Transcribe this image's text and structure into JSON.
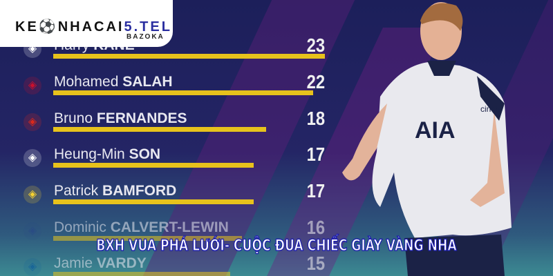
{
  "logo": {
    "main_prefix": "KE",
    "main_mid": "NHACAI",
    "main_accent": "5.TEL",
    "sub": "BAZOKA"
  },
  "scorers": [
    {
      "first": "Harry",
      "last": "KANE",
      "goals": 23,
      "club_icon": "tottenham-crest-icon",
      "color": "#ffffff"
    },
    {
      "first": "Mohamed",
      "last": "SALAH",
      "goals": 22,
      "club_icon": "liverpool-crest-icon",
      "color": "#c8102e"
    },
    {
      "first": "Bruno",
      "last": "FERNANDES",
      "goals": 18,
      "club_icon": "manchester-united-crest-icon",
      "color": "#da291c"
    },
    {
      "first": "Heung-Min",
      "last": "SON",
      "goals": 17,
      "club_icon": "tottenham-crest-icon",
      "color": "#ffffff"
    },
    {
      "first": "Patrick",
      "last": "BAMFORD",
      "goals": 17,
      "club_icon": "leeds-crest-icon",
      "color": "#f5d130"
    },
    {
      "first": "Dominic",
      "last": "CALVERT-LEWIN",
      "goals": 16,
      "club_icon": "everton-crest-icon",
      "color": "#274488"
    },
    {
      "first": "Jamie",
      "last": "VARDY",
      "goals": 15,
      "club_icon": "leicester-crest-icon",
      "color": "#0053a0"
    }
  ],
  "bar_color": "#e7c21c",
  "headline": "BXH VUA PHÁ LƯỚI- CUỘC ĐUA CHIẾC GIÀY VÀNG NHA",
  "shirt": {
    "sponsor": "AIA",
    "sleeve": "cinch"
  }
}
